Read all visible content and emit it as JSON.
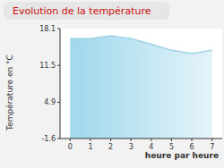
{
  "chart_data": {
    "type": "area",
    "title": "Evolution de la température",
    "x_label": "heure par heure",
    "y_label": "Température en °C",
    "x": [
      0,
      1,
      2,
      3,
      4,
      5,
      6,
      7
    ],
    "values": [
      16.3,
      16.3,
      16.8,
      16.3,
      15.3,
      14.2,
      13.6,
      14.2
    ],
    "color": "#9fd3e8",
    "xlim": [
      -0.5,
      7.5
    ],
    "xticks": [
      0,
      1,
      2,
      3,
      4,
      5,
      6,
      7
    ],
    "ylim": [
      -1.6,
      18.1
    ],
    "yticks": [
      -1.6,
      4.9,
      11.5,
      18.1
    ],
    "grid": false
  }
}
